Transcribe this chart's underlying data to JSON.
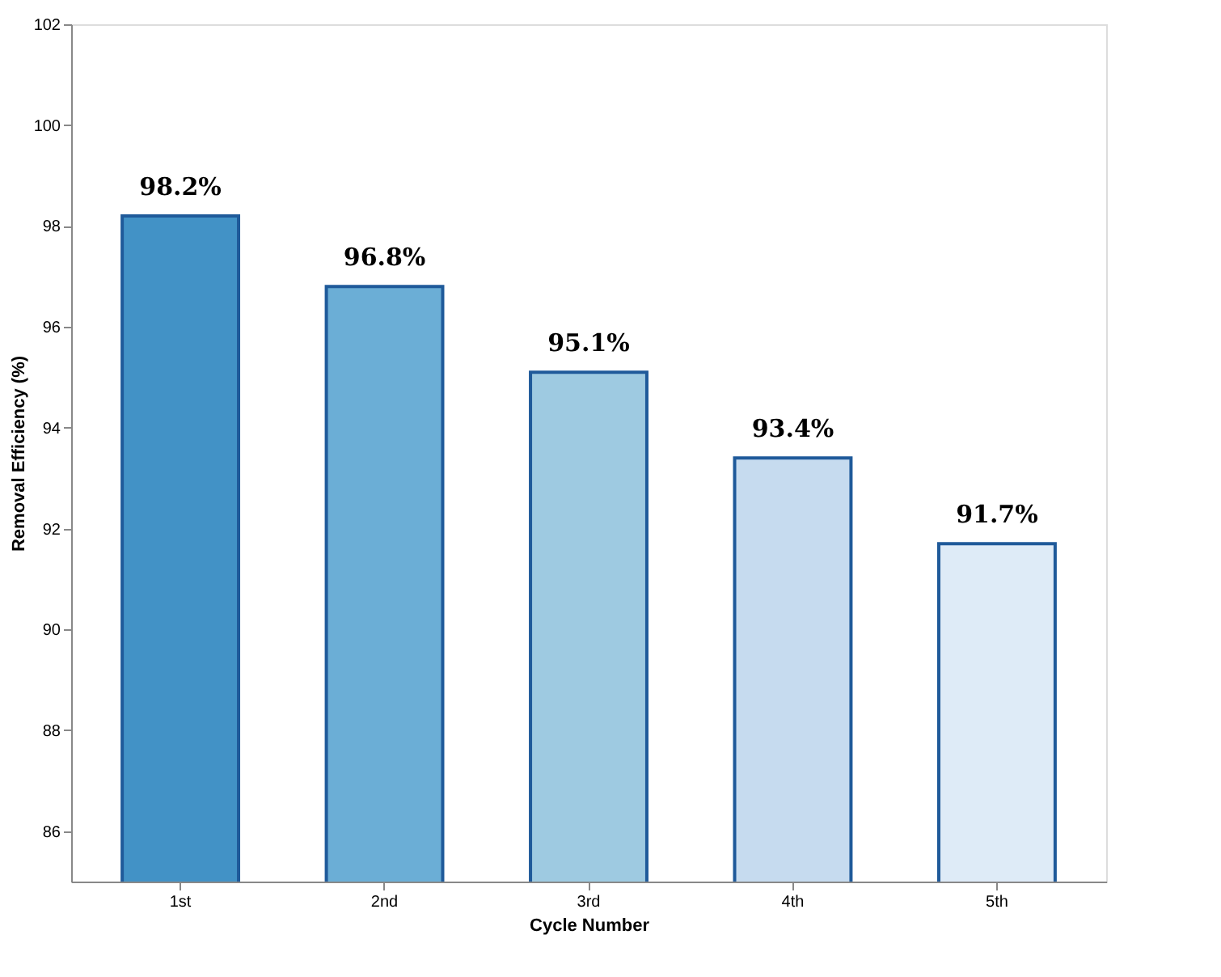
{
  "chart_data": {
    "type": "bar",
    "xlabel": "Cycle Number",
    "ylabel": "Removal Efficiency (%)",
    "categories": [
      "1st",
      "2nd",
      "3rd",
      "4th",
      "5th"
    ],
    "values": [
      98.2,
      96.8,
      95.1,
      93.4,
      91.7
    ],
    "colors": [
      "#4292c6",
      "#6baed6",
      "#9ecae1",
      "#c6dbef",
      "#deebf7"
    ],
    "value_labels": [
      "98.2%",
      "96.8%",
      "95.1%",
      "93.4%",
      "91.7%"
    ],
    "ylim": [
      85,
      102
    ],
    "yticks": [
      86,
      88,
      90,
      92,
      94,
      96,
      98,
      100,
      102
    ],
    "grid": false
  }
}
